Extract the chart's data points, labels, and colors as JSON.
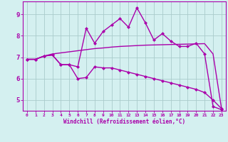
{
  "xlabel": "Windchill (Refroidissement éolien,°C)",
  "background_color": "#d4f0f0",
  "line_color": "#aa00aa",
  "grid_color": "#aacccc",
  "xlim": [
    -0.5,
    23.5
  ],
  "ylim": [
    4.5,
    9.6
  ],
  "yticks": [
    5,
    6,
    7,
    8,
    9
  ],
  "xticks": [
    0,
    1,
    2,
    3,
    4,
    5,
    6,
    7,
    8,
    9,
    10,
    11,
    12,
    13,
    14,
    15,
    16,
    17,
    18,
    19,
    20,
    21,
    22,
    23
  ],
  "upper_x": [
    0,
    1,
    2,
    3,
    4,
    5,
    6,
    7,
    8,
    9,
    10,
    11,
    12,
    13,
    14,
    15,
    16,
    17,
    18,
    19,
    20,
    21,
    22,
    23
  ],
  "upper_y": [
    6.9,
    6.9,
    7.05,
    7.1,
    6.65,
    6.65,
    6.55,
    8.35,
    7.65,
    8.2,
    8.5,
    8.8,
    8.4,
    9.3,
    8.6,
    7.8,
    8.1,
    7.75,
    7.5,
    7.5,
    7.65,
    7.15,
    4.7,
    4.55
  ],
  "middle_x": [
    0,
    1,
    2,
    3,
    4,
    5,
    6,
    7,
    8,
    9,
    10,
    11,
    12,
    13,
    14,
    15,
    16,
    17,
    18,
    19,
    20,
    21,
    22,
    23
  ],
  "middle_y": [
    6.9,
    6.9,
    7.05,
    7.15,
    7.2,
    7.25,
    7.3,
    7.35,
    7.4,
    7.43,
    7.47,
    7.5,
    7.52,
    7.54,
    7.56,
    7.57,
    7.58,
    7.59,
    7.6,
    7.61,
    7.62,
    7.63,
    7.15,
    4.6
  ],
  "lower_x": [
    0,
    1,
    2,
    3,
    4,
    5,
    6,
    7,
    8,
    9,
    10,
    11,
    12,
    13,
    14,
    15,
    16,
    17,
    18,
    19,
    20,
    21,
    22,
    23
  ],
  "lower_y": [
    6.9,
    6.9,
    7.05,
    7.1,
    6.65,
    6.65,
    6.0,
    6.05,
    6.55,
    6.5,
    6.5,
    6.4,
    6.3,
    6.2,
    6.1,
    6.0,
    5.9,
    5.8,
    5.7,
    5.6,
    5.5,
    5.35,
    5.0,
    4.6
  ],
  "marker": "D",
  "markersize": 2.5,
  "linewidth": 1.0
}
